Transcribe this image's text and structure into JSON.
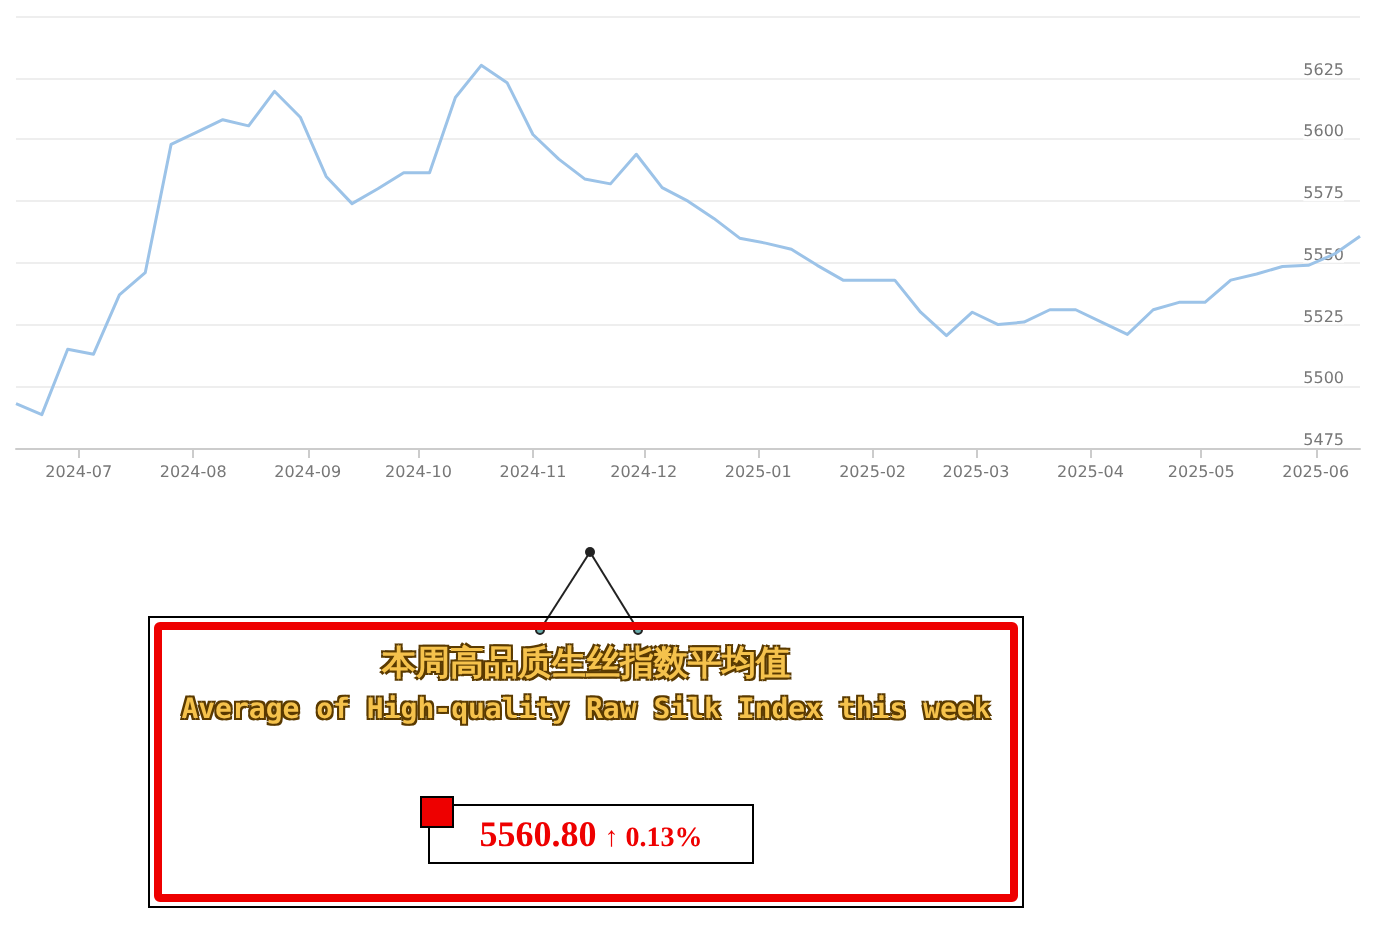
{
  "chart_data": [
    {
      "type": "line",
      "color": "#9cc3e8",
      "grid": "y",
      "marker": "none",
      "line_style": "solid",
      "x": [
        "2024-06-14",
        "2024-06-21",
        "2024-06-28",
        "2024-07-05",
        "2024-07-12",
        "2024-07-19",
        "2024-07-26",
        "2024-08-02",
        "2024-08-09",
        "2024-08-16",
        "2024-08-23",
        "2024-08-30",
        "2024-09-06",
        "2024-09-13",
        "2024-09-20",
        "2024-09-27",
        "2024-10-04",
        "2024-10-11",
        "2024-10-18",
        "2024-10-25",
        "2024-11-01",
        "2024-11-08",
        "2024-11-15",
        "2024-11-22",
        "2024-11-29",
        "2024-12-06",
        "2024-12-13",
        "2024-12-20",
        "2024-12-27",
        "2025-01-03",
        "2025-01-10",
        "2025-01-17",
        "2025-01-24",
        "2025-01-31",
        "2025-02-07",
        "2025-02-14",
        "2025-02-21",
        "2025-02-28",
        "2025-03-07",
        "2025-03-14",
        "2025-03-21",
        "2025-03-28",
        "2025-04-04",
        "2025-04-11",
        "2025-04-18",
        "2025-04-25",
        "2025-05-02",
        "2025-05-09",
        "2025-05-16",
        "2025-05-23",
        "2025-05-30",
        "2025-06-06",
        "2025-06-13"
      ],
      "values": [
        5493,
        5488.5,
        5515,
        5513,
        5537,
        5546,
        5598,
        5603,
        5608,
        5605.5,
        5619.5,
        5609,
        5585,
        5574,
        5580,
        5586.5,
        5586.5,
        5617,
        5630,
        5623,
        5602,
        5592,
        5584,
        5582,
        5594,
        5580.5,
        5575,
        5568,
        5560,
        5558,
        5555.5,
        5549,
        5543,
        5543,
        5543,
        5530,
        5520.5,
        5530,
        5525,
        5526,
        5531,
        5531,
        5526,
        5521,
        5531,
        5534,
        5534,
        5543,
        5545.5,
        5548.5,
        5549,
        5553.5,
        5560.8
      ],
      "xlim": [
        "2024-06-14",
        "2025-06-13"
      ],
      "xticks": [
        {
          "value": "2024-07",
          "label": "2024-07"
        },
        {
          "value": "2024-08",
          "label": "2024-08"
        },
        {
          "value": "2024-09",
          "label": "2024-09"
        },
        {
          "value": "2024-10",
          "label": "2024-10"
        },
        {
          "value": "2024-11",
          "label": "2024-11"
        },
        {
          "value": "2024-12",
          "label": "2024-12"
        },
        {
          "value": "2025-01",
          "label": "2025-01"
        },
        {
          "value": "2025-02",
          "label": "2025-02"
        },
        {
          "value": "2025-03",
          "label": "2025-03"
        },
        {
          "value": "2025-04",
          "label": "2025-04"
        },
        {
          "value": "2025-05",
          "label": "2025-05"
        },
        {
          "value": "2025-06",
          "label": "2025-06"
        }
      ],
      "ylim": [
        5475,
        5650
      ],
      "yticks": [
        5475,
        5500,
        5525,
        5550,
        5575,
        5600,
        5625,
        {
          "value": 5650,
          "label": null
        }
      ]
    },
    {
      "type": "other",
      "title": "本周高品质生丝指数平均值",
      "subtitle": "Average of High-quality Raw Silk Index this week",
      "annotations": [
        "5560.80",
        "↑ 0.13%"
      ]
    }
  ]
}
